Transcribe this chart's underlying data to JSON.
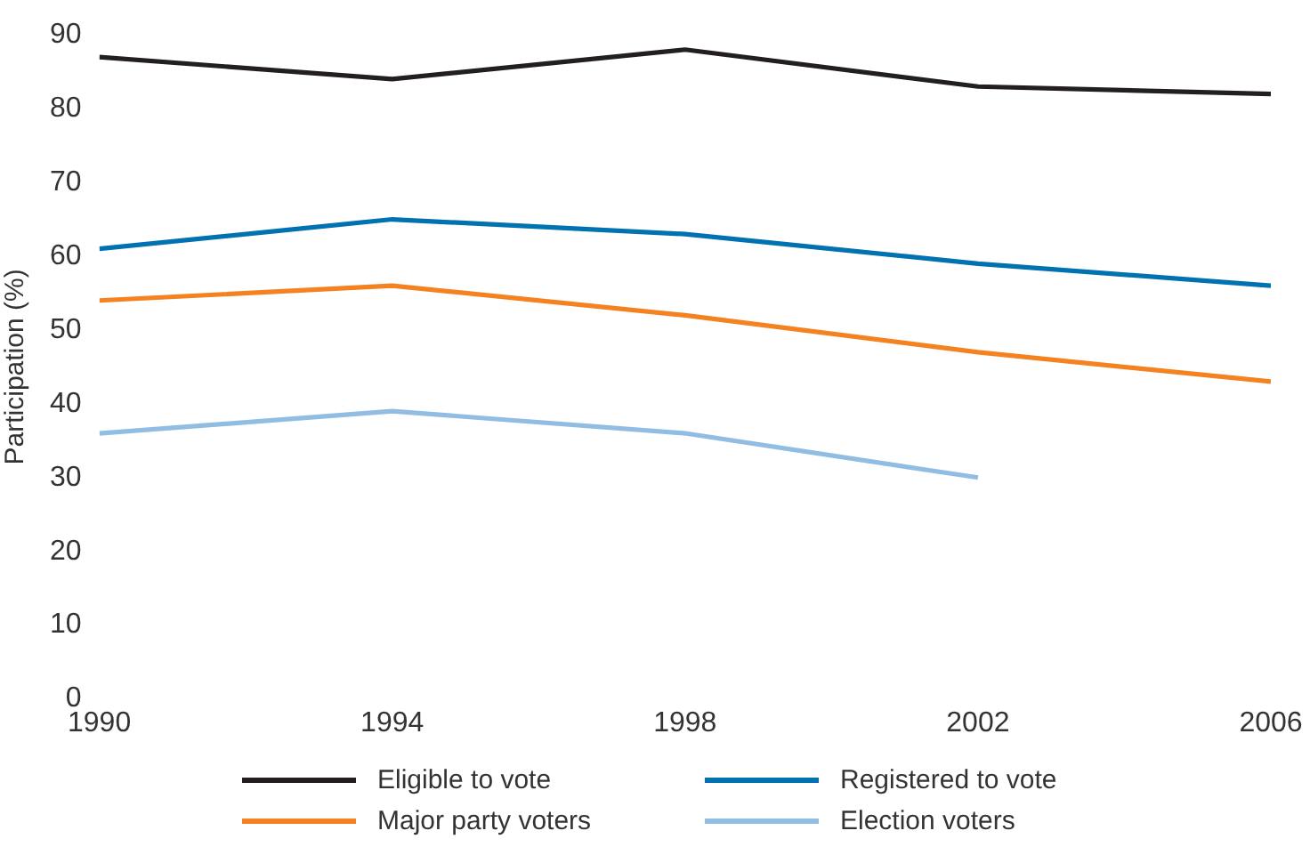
{
  "chart_data": {
    "type": "line",
    "ylabel": "Participation (%)",
    "x": [
      1990,
      1994,
      1998,
      2002,
      2006
    ],
    "xlim": [
      1990,
      2006
    ],
    "xticks": [
      1990,
      1994,
      1998,
      2002,
      2006
    ],
    "ylim": [
      0,
      90
    ],
    "yticks": [
      0,
      10,
      20,
      30,
      40,
      50,
      60,
      70,
      80,
      90
    ],
    "grid": false,
    "legend": "bottom",
    "marker": "none",
    "series": [
      {
        "name": "Eligible to vote",
        "color": "#231f20",
        "values": [
          87,
          84,
          88,
          83,
          82
        ]
      },
      {
        "name": "Registered to vote",
        "color": "#0072b2",
        "values": [
          61,
          65,
          63,
          59,
          56
        ]
      },
      {
        "name": "Major party voters",
        "color": "#f58220",
        "values": [
          54,
          56,
          52,
          47,
          43
        ]
      },
      {
        "name": "Election voters",
        "color": "#92bde2",
        "values": [
          36,
          39,
          36,
          30,
          null
        ]
      }
    ]
  }
}
